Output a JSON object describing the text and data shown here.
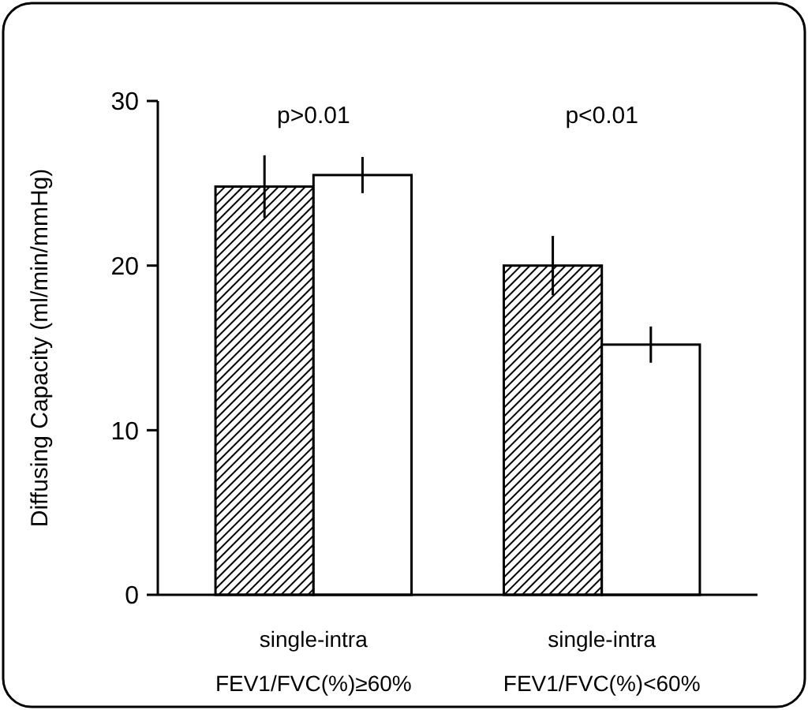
{
  "chart_data": {
    "type": "bar",
    "ylabel": "Diffusing Capacity (ml/min/mmHg)",
    "categories": [
      "single-intra\nFEV1/FVC(%)≥60%",
      "single-intra\nFEV1/FVC(%)<60%"
    ],
    "series": [
      {
        "color": "#000000",
        "values": [
          24.8,
          20.0
        ],
        "errors": [
          1.9,
          1.8
        ]
      },
      {
        "color": "#ffffff",
        "values": [
          25.5,
          15.2
        ],
        "errors": [
          1.1,
          1.1
        ]
      }
    ],
    "ylim": [
      0,
      30
    ],
    "yticks": [
      0,
      10,
      20,
      30
    ],
    "grid": false,
    "annotations": [
      "p>0.01",
      "p<0.01"
    ]
  }
}
